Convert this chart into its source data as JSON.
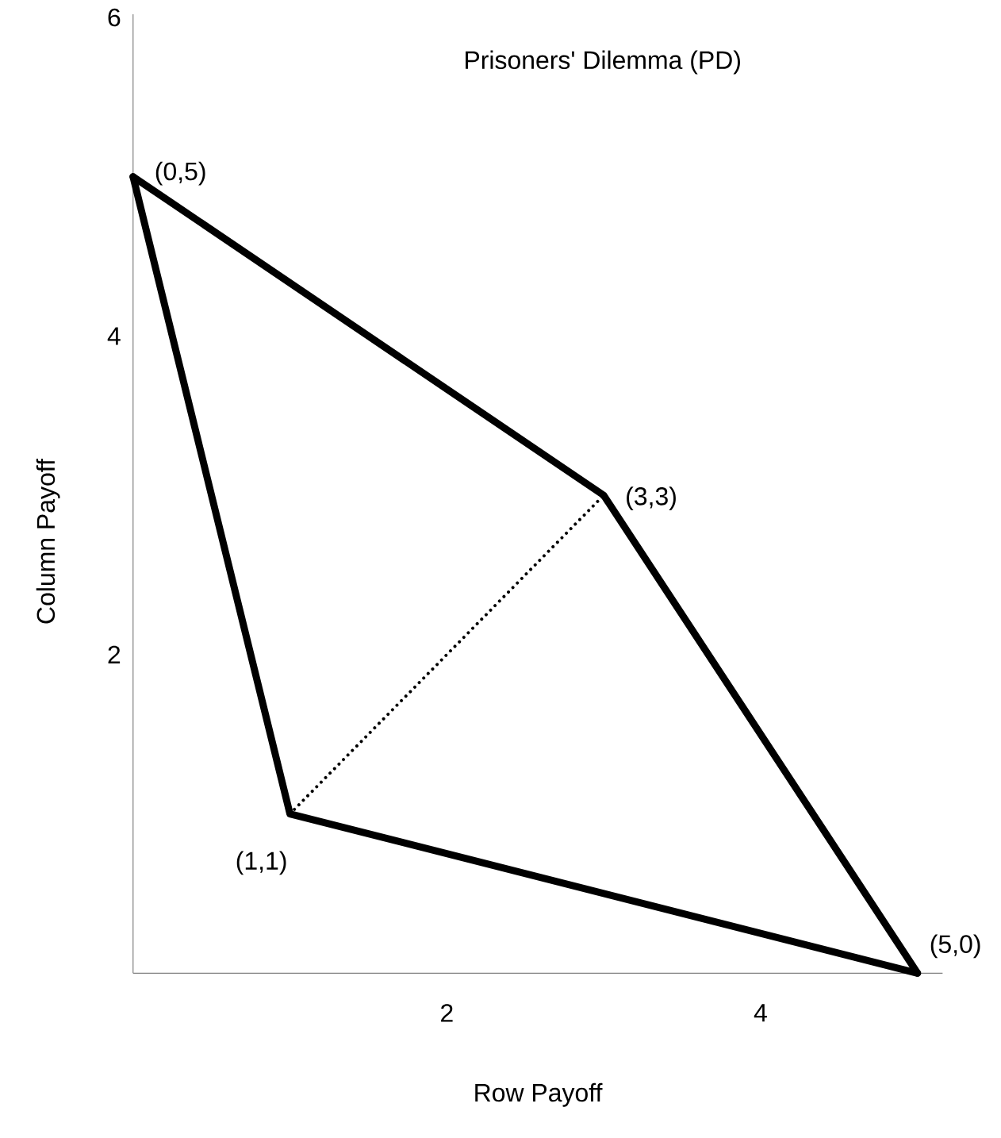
{
  "chart_data": {
    "type": "line",
    "title": "Prisoners' Dilemma (PD)",
    "xlabel": "Row Payoff",
    "ylabel": "Column Payoff",
    "xlim": [
      0,
      5.16
    ],
    "ylim": [
      0,
      6.02
    ],
    "xticks": [
      2,
      4
    ],
    "yticks": [
      2,
      4,
      6
    ],
    "grid": false,
    "marker": "none",
    "series": [
      {
        "x": [
          1,
          3
        ],
        "values": [
          1,
          3
        ],
        "color": "#000000",
        "line_style": "dotted"
      },
      {
        "x": [
          0,
          3,
          5
        ],
        "values": [
          5,
          3,
          0
        ],
        "color": "#000000",
        "line_style": "solid"
      },
      {
        "x": [
          0,
          1,
          5
        ],
        "values": [
          5,
          1,
          0
        ],
        "color": "#000000",
        "line_style": "solid"
      }
    ],
    "annotations": [
      {
        "text": "(0,5)",
        "x": 0,
        "y": 5
      },
      {
        "text": "(3,3)",
        "x": 3,
        "y": 3
      },
      {
        "text": "(1,1)",
        "x": 1,
        "y": 1
      },
      {
        "text": "(5,0)",
        "x": 5,
        "y": 0
      }
    ]
  }
}
